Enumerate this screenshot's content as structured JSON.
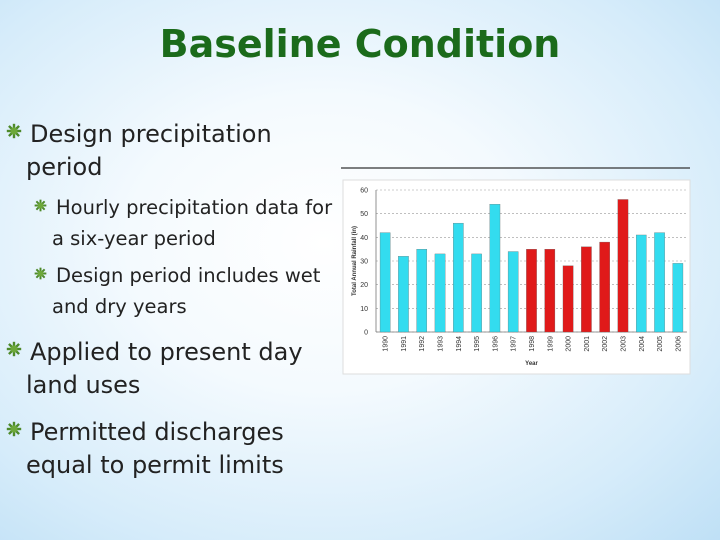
{
  "title": "Baseline Condition",
  "bullets": [
    {
      "text": "Design precipitation period",
      "sub": [
        {
          "text": "Hourly precipitation data for a six-year period"
        },
        {
          "text": "Design period includes wet and dry years"
        }
      ]
    },
    {
      "text": "Applied to present day land uses"
    },
    {
      "text": "Permitted discharges equal to permit limits"
    }
  ],
  "chart_data": {
    "type": "bar",
    "x_label": "Year",
    "y_label": "Total Annual Rainfall (in)",
    "categories": [
      "1990",
      "1991",
      "1992",
      "1993",
      "1994",
      "1995",
      "1996",
      "1997",
      "1998",
      "1999",
      "2000",
      "2001",
      "2002",
      "2003",
      "2004",
      "2005",
      "2006"
    ],
    "values": [
      42,
      32,
      35,
      33,
      46,
      33,
      54,
      34,
      35,
      35,
      28,
      36,
      38,
      56,
      41,
      42,
      29
    ],
    "colors": [
      "#33dcef",
      "#33dcef",
      "#33dcef",
      "#33dcef",
      "#33dcef",
      "#33dcef",
      "#33dcef",
      "#33dcef",
      "#e01a1a",
      "#e01a1a",
      "#e01a1a",
      "#e01a1a",
      "#e01a1a",
      "#e01a1a",
      "#33dcef",
      "#33dcef",
      "#33dcef"
    ],
    "ylim": [
      0,
      60
    ],
    "yticks": [
      0,
      10,
      20,
      30,
      40,
      50,
      60
    ],
    "grid": true
  }
}
